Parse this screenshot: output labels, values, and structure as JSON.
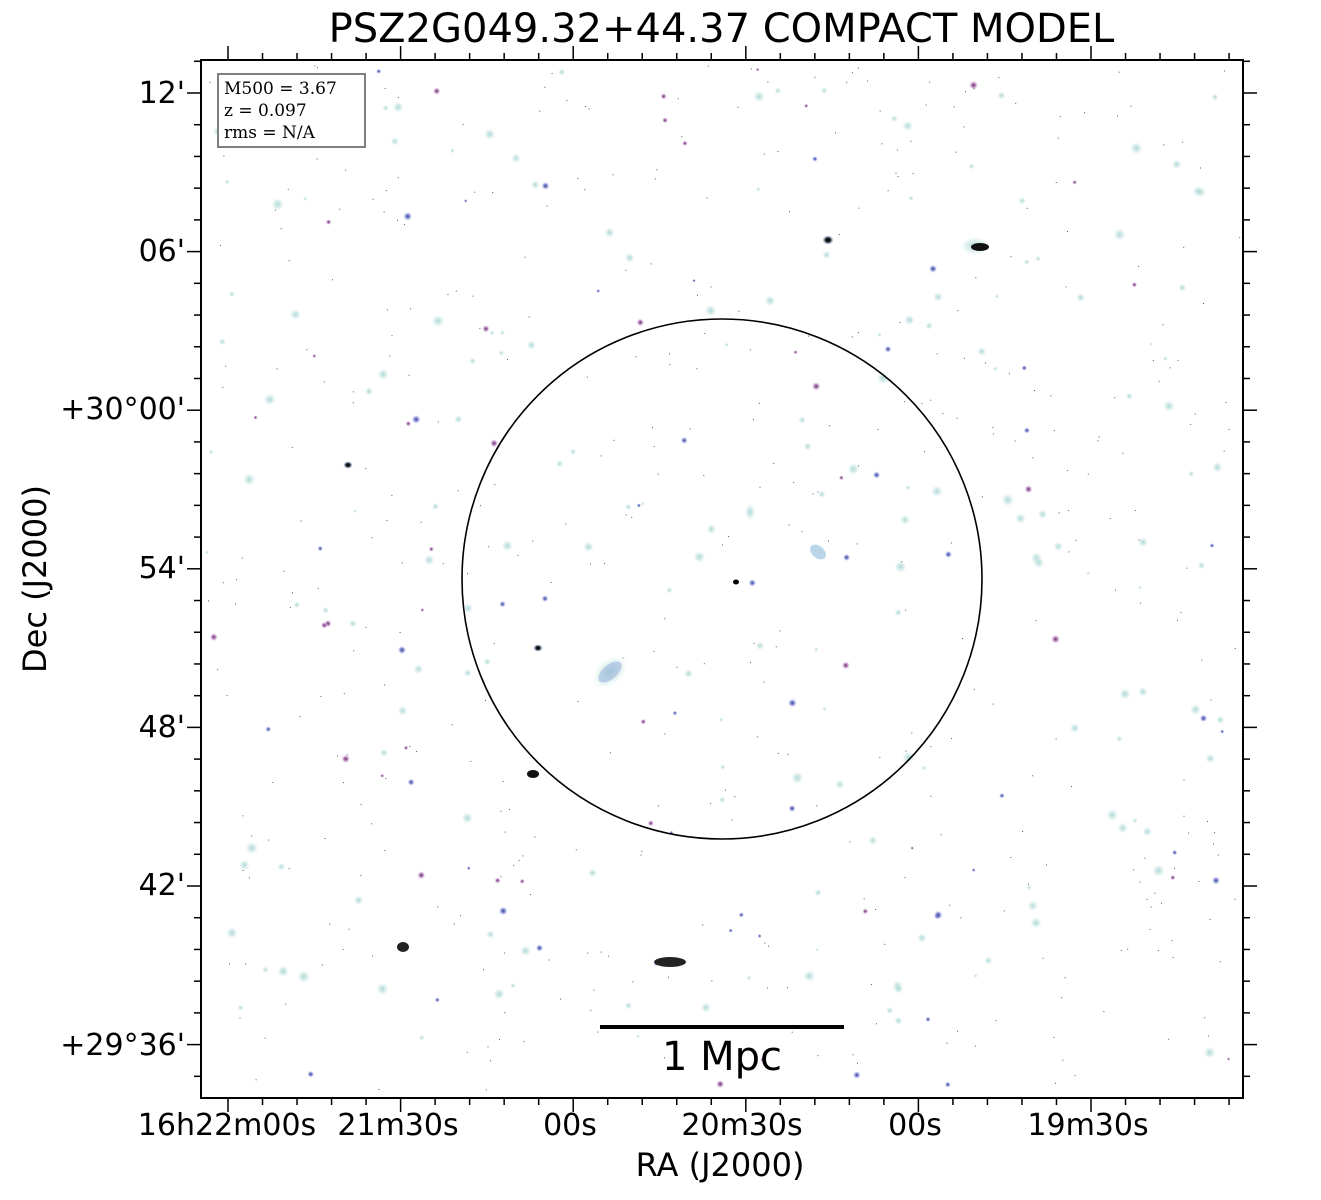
{
  "title": "PSZ2G049.32+44.37 COMPACT MODEL",
  "info_box": {
    "mass": "M500 = 3.67",
    "redshift": "z = 0.097",
    "rms": "rms = N/A"
  },
  "axes": {
    "xlabel": "RA (J2000)",
    "ylabel": "Dec (J2000)",
    "x_ticks": [
      "16h22m00s",
      "21m30s",
      "00s",
      "20m30s",
      "00s",
      "19m30s"
    ],
    "y_ticks": [
      "12'",
      "06'",
      "+30°00'",
      "54'",
      "48'",
      "42'",
      "+29°36'"
    ]
  },
  "scale_bar": {
    "label": "1 Mpc"
  },
  "colors": {
    "source_light": "#bfe1e0",
    "source_blue": "#5a63c0",
    "source_purple": "#b070b0",
    "frame": "#000000",
    "circle": "#000000"
  }
}
